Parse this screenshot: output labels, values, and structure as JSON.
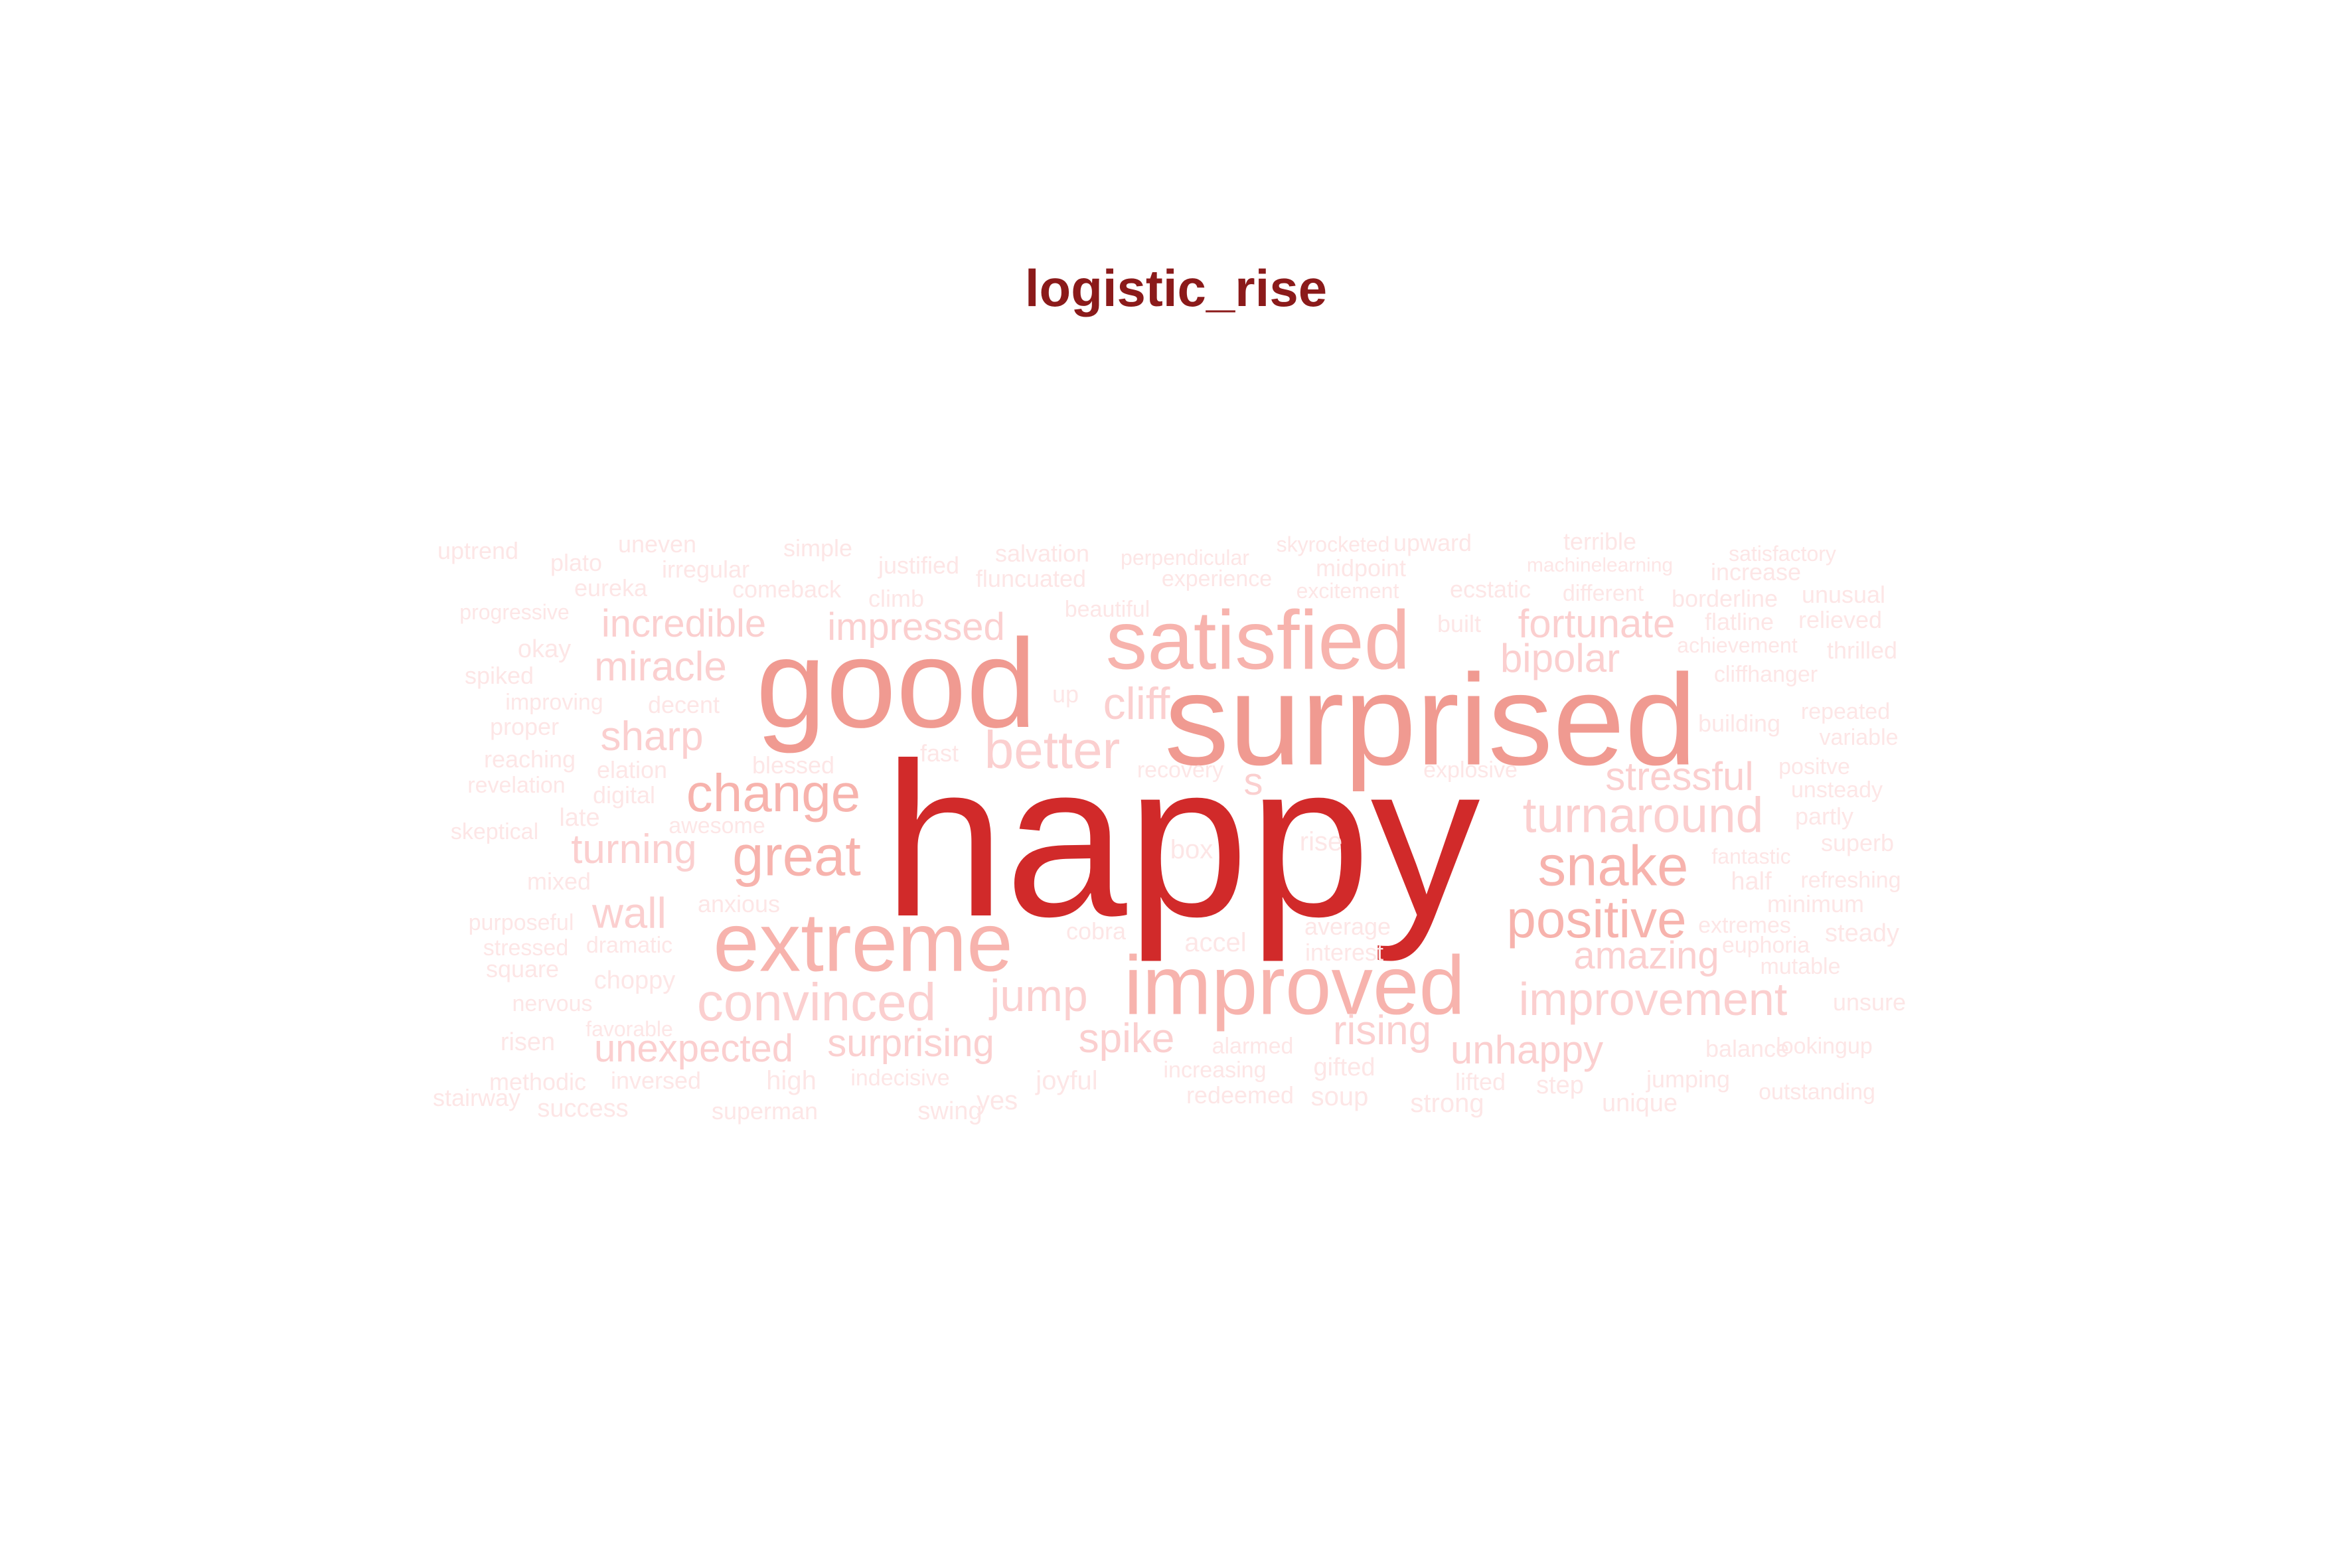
{
  "title": "logistic_rise",
  "palette": {
    "level_1": "#fde6e6",
    "level_2": "#fbcfcf",
    "level_3": "#f7b3ad",
    "level_4": "#f09a91",
    "level_5": "#d12a2a"
  },
  "words": [
    {
      "text": "happy",
      "level": 5
    },
    {
      "text": "surprised",
      "level": 4
    },
    {
      "text": "good",
      "level": 4
    },
    {
      "text": "satisfied",
      "level": 3
    },
    {
      "text": "extreme",
      "level": 3
    },
    {
      "text": "improved",
      "level": 3
    },
    {
      "text": "change",
      "level": 3
    },
    {
      "text": "great",
      "level": 3
    },
    {
      "text": "snake",
      "level": 3
    },
    {
      "text": "positive",
      "level": 3
    },
    {
      "text": "convinced",
      "level": 2
    },
    {
      "text": "better",
      "level": 2
    },
    {
      "text": "turnaround",
      "level": 2
    },
    {
      "text": "improvement",
      "level": 2
    },
    {
      "text": "incredible",
      "level": 2
    },
    {
      "text": "impressed",
      "level": 2
    },
    {
      "text": "miracle",
      "level": 2
    },
    {
      "text": "sharp",
      "level": 2
    },
    {
      "text": "turning",
      "level": 2
    },
    {
      "text": "wall",
      "level": 2
    },
    {
      "text": "fortunate",
      "level": 2
    },
    {
      "text": "bipolar",
      "level": 2
    },
    {
      "text": "stressful",
      "level": 2
    },
    {
      "text": "amazing",
      "level": 2
    },
    {
      "text": "jump",
      "level": 2
    },
    {
      "text": "spike",
      "level": 2
    },
    {
      "text": "rising",
      "level": 2
    },
    {
      "text": "unhappy",
      "level": 2
    },
    {
      "text": "unexpected",
      "level": 2
    },
    {
      "text": "surprising",
      "level": 2
    },
    {
      "text": "cliff",
      "level": 2
    },
    {
      "text": "s",
      "level": 2
    },
    {
      "text": "uptrend",
      "level": 1
    },
    {
      "text": "plato",
      "level": 1
    },
    {
      "text": "uneven",
      "level": 1
    },
    {
      "text": "irregular",
      "level": 1
    },
    {
      "text": "simple",
      "level": 1
    },
    {
      "text": "justified",
      "level": 1
    },
    {
      "text": "salvation",
      "level": 1
    },
    {
      "text": "fluncuated",
      "level": 1
    },
    {
      "text": "perpendicular",
      "level": 1
    },
    {
      "text": "experience",
      "level": 1
    },
    {
      "text": "skyrocketed",
      "level": 1
    },
    {
      "text": "midpoint",
      "level": 1
    },
    {
      "text": "excitement",
      "level": 1
    },
    {
      "text": "upward",
      "level": 1
    },
    {
      "text": "terrible",
      "level": 1
    },
    {
      "text": "machinelearning",
      "level": 1
    },
    {
      "text": "satisfactory",
      "level": 1
    },
    {
      "text": "increase",
      "level": 1
    },
    {
      "text": "eureka",
      "level": 1
    },
    {
      "text": "comeback",
      "level": 1
    },
    {
      "text": "climb",
      "level": 1
    },
    {
      "text": "ecstatic",
      "level": 1
    },
    {
      "text": "different",
      "level": 1
    },
    {
      "text": "borderline",
      "level": 1
    },
    {
      "text": "unusual",
      "level": 1
    },
    {
      "text": "progressive",
      "level": 1
    },
    {
      "text": "beautiful",
      "level": 1
    },
    {
      "text": "built",
      "level": 1
    },
    {
      "text": "flatline",
      "level": 1
    },
    {
      "text": "relieved",
      "level": 1
    },
    {
      "text": "okay",
      "level": 1
    },
    {
      "text": "achievement",
      "level": 1
    },
    {
      "text": "thrilled",
      "level": 1
    },
    {
      "text": "spiked",
      "level": 1
    },
    {
      "text": "cliffhanger",
      "level": 1
    },
    {
      "text": "improving",
      "level": 1
    },
    {
      "text": "decent",
      "level": 1
    },
    {
      "text": "up",
      "level": 1
    },
    {
      "text": "proper",
      "level": 1
    },
    {
      "text": "repeated",
      "level": 1
    },
    {
      "text": "building",
      "level": 1
    },
    {
      "text": "variable",
      "level": 1
    },
    {
      "text": "fast",
      "level": 1
    },
    {
      "text": "reaching",
      "level": 1
    },
    {
      "text": "blessed",
      "level": 1
    },
    {
      "text": "recovery",
      "level": 1
    },
    {
      "text": "elation",
      "level": 1
    },
    {
      "text": "explosive",
      "level": 1
    },
    {
      "text": "positve",
      "level": 1
    },
    {
      "text": "revelation",
      "level": 1
    },
    {
      "text": "digital",
      "level": 1
    },
    {
      "text": "unsteady",
      "level": 1
    },
    {
      "text": "late",
      "level": 1
    },
    {
      "text": "awesome",
      "level": 1
    },
    {
      "text": "partly",
      "level": 1
    },
    {
      "text": "skeptical",
      "level": 1
    },
    {
      "text": "superb",
      "level": 1
    },
    {
      "text": "box",
      "level": 1
    },
    {
      "text": "rise",
      "level": 1
    },
    {
      "text": "fantastic",
      "level": 1
    },
    {
      "text": "mixed",
      "level": 1
    },
    {
      "text": "half",
      "level": 1
    },
    {
      "text": "refreshing",
      "level": 1
    },
    {
      "text": "anxious",
      "level": 1
    },
    {
      "text": "minimum",
      "level": 1
    },
    {
      "text": "purposeful",
      "level": 1
    },
    {
      "text": "cobra",
      "level": 1
    },
    {
      "text": "average",
      "level": 1
    },
    {
      "text": "extremes",
      "level": 1
    },
    {
      "text": "steady",
      "level": 1
    },
    {
      "text": "stressed",
      "level": 1
    },
    {
      "text": "dramatic",
      "level": 1
    },
    {
      "text": "accel",
      "level": 1
    },
    {
      "text": "interest",
      "level": 1
    },
    {
      "text": "euphoria",
      "level": 1
    },
    {
      "text": "square",
      "level": 1
    },
    {
      "text": "mutable",
      "level": 1
    },
    {
      "text": "choppy",
      "level": 1
    },
    {
      "text": "nervous",
      "level": 1
    },
    {
      "text": "unsure",
      "level": 1
    },
    {
      "text": "favorable",
      "level": 1
    },
    {
      "text": "risen",
      "level": 1
    },
    {
      "text": "alarmed",
      "level": 1
    },
    {
      "text": "balance",
      "level": 1
    },
    {
      "text": "lookingup",
      "level": 1
    },
    {
      "text": "methodic",
      "level": 1
    },
    {
      "text": "inversed",
      "level": 1
    },
    {
      "text": "high",
      "level": 1
    },
    {
      "text": "indecisive",
      "level": 1
    },
    {
      "text": "joyful",
      "level": 1
    },
    {
      "text": "increasing",
      "level": 1
    },
    {
      "text": "gifted",
      "level": 1
    },
    {
      "text": "lifted",
      "level": 1
    },
    {
      "text": "jumping",
      "level": 1
    },
    {
      "text": "step",
      "level": 1
    },
    {
      "text": "stairway",
      "level": 1
    },
    {
      "text": "yes",
      "level": 1
    },
    {
      "text": "redeemed",
      "level": 1
    },
    {
      "text": "soup",
      "level": 1
    },
    {
      "text": "outstanding",
      "level": 1
    },
    {
      "text": "success",
      "level": 1
    },
    {
      "text": "superman",
      "level": 1
    },
    {
      "text": "swing",
      "level": 1
    },
    {
      "text": "strong",
      "level": 1
    },
    {
      "text": "unique",
      "level": 1
    }
  ]
}
